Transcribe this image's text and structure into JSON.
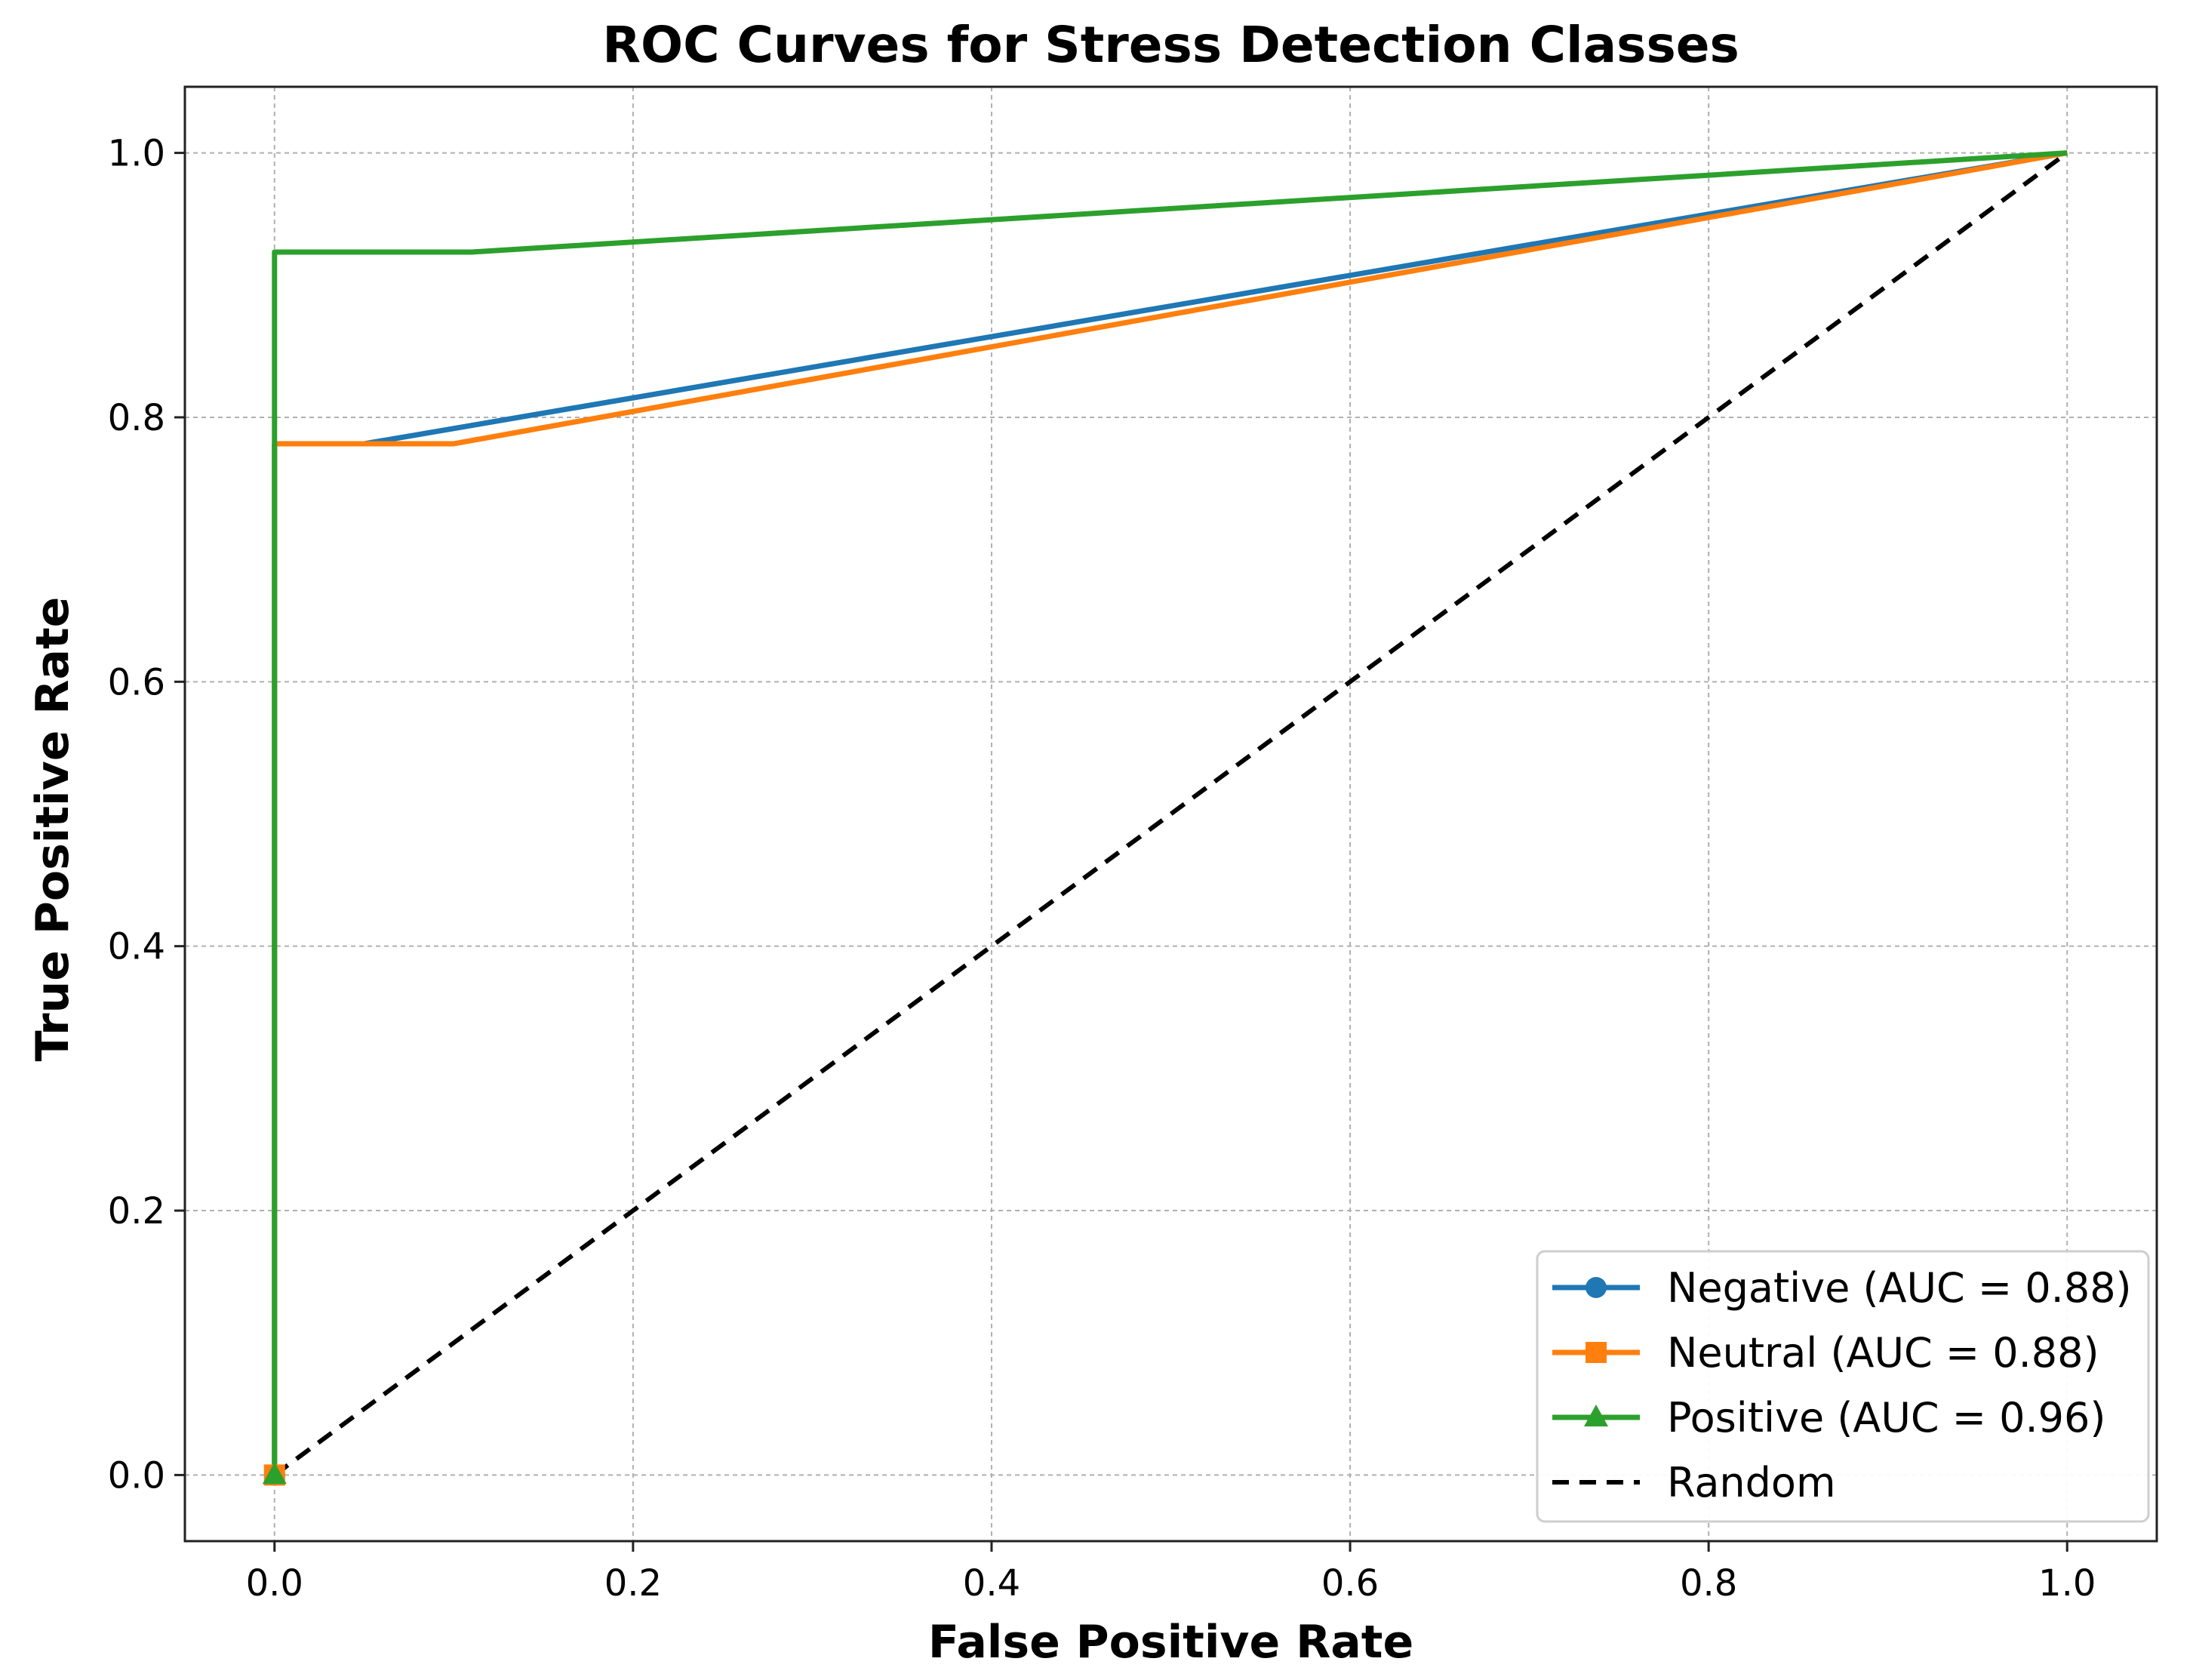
{
  "chart_data": {
    "type": "line",
    "title": "ROC Curves for Stress Detection Classes",
    "xlabel": "False Positive Rate",
    "ylabel": "True Positive Rate",
    "xlim": [
      -0.05,
      1.05
    ],
    "ylim": [
      -0.05,
      1.05
    ],
    "xticks": [
      0.0,
      0.2,
      0.4,
      0.6,
      0.8,
      1.0
    ],
    "yticks": [
      0.0,
      0.2,
      0.4,
      0.6,
      0.8,
      1.0
    ],
    "xtick_labels": [
      "0.0",
      "0.2",
      "0.4",
      "0.6",
      "0.8",
      "1.0"
    ],
    "ytick_labels": [
      "0.0",
      "0.2",
      "0.4",
      "0.6",
      "0.8",
      "1.0"
    ],
    "grid": true,
    "legend_position": "bottom-right",
    "series": [
      {
        "name": "Negative (AUC = 0.88)",
        "color": "#1f77b4",
        "marker": "circle",
        "x": [
          0.0,
          0.0,
          0.05,
          1.0
        ],
        "y": [
          0.0,
          0.78,
          0.78,
          1.0
        ]
      },
      {
        "name": "Neutral (AUC = 0.88)",
        "color": "#ff7f0e",
        "marker": "square",
        "x": [
          0.0,
          0.0,
          0.1,
          1.0
        ],
        "y": [
          0.0,
          0.78,
          0.78,
          1.0
        ]
      },
      {
        "name": "Positive (AUC = 0.96)",
        "color": "#2ca02c",
        "marker": "triangle",
        "x": [
          0.0,
          0.0,
          0.11,
          1.0
        ],
        "y": [
          0.0,
          0.925,
          0.925,
          1.0
        ]
      },
      {
        "name": "Random",
        "color": "#000000",
        "marker": "none",
        "dashed": true,
        "x": [
          0.0,
          1.0
        ],
        "y": [
          0.0,
          1.0
        ]
      }
    ]
  }
}
